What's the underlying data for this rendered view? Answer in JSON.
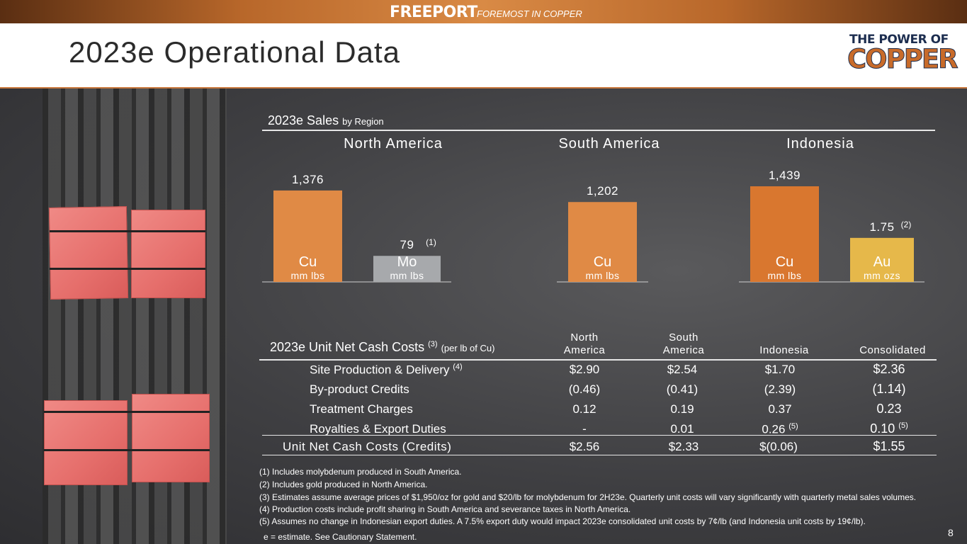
{
  "brand": {
    "name": "FREEPORT",
    "tagline": "FOREMOST IN COPPER"
  },
  "page": {
    "title": "2023e Operational Data",
    "number": "8"
  },
  "logo": {
    "line1": "THE POWER OF",
    "line2": "COPPER"
  },
  "sales": {
    "title": "2023e Sales",
    "subtitle": "by Region",
    "regions": [
      "North America",
      "South America",
      "Indonesia"
    ]
  },
  "chart_data": {
    "type": "bar",
    "title": "2023e Sales by Region",
    "groups": [
      "North America",
      "South America",
      "Indonesia"
    ],
    "bars": [
      {
        "group": "North America",
        "metal": "Cu",
        "unit": "mm lbs",
        "value": 1376,
        "label": "1,376",
        "note": "",
        "color": "#e08a45",
        "scale_max": 1439
      },
      {
        "group": "North America",
        "metal": "Mo",
        "unit": "mm lbs",
        "value": 79,
        "label": "79",
        "note": "(1)",
        "color": "#a7a9ac",
        "scale_max": 290
      },
      {
        "group": "South America",
        "metal": "Cu",
        "unit": "mm lbs",
        "value": 1202,
        "label": "1,202",
        "note": "",
        "color": "#e08a45",
        "scale_max": 1439
      },
      {
        "group": "Indonesia",
        "metal": "Cu",
        "unit": "mm lbs",
        "value": 1439,
        "label": "1,439",
        "note": "",
        "color": "#d9772f",
        "scale_max": 1439
      },
      {
        "group": "Indonesia",
        "metal": "Au",
        "unit": "mm ozs",
        "value": 1.75,
        "label": "1.75",
        "note": "(2)",
        "color": "#e6b84a",
        "scale_max": 3.8
      }
    ]
  },
  "costs": {
    "title": "2023e Unit Net Cash Costs",
    "title_note": "(3)",
    "title_suffix": "(per lb of Cu)",
    "columns": [
      {
        "line1": "North",
        "line2": "America"
      },
      {
        "line1": "South",
        "line2": "America"
      },
      {
        "line1": "",
        "line2": "Indonesia"
      },
      {
        "line1": "",
        "line2": "Consolidated"
      }
    ],
    "rows": [
      {
        "label": "Site Production & Delivery",
        "note": "(4)",
        "values": [
          "$2.90",
          "$2.54",
          "$1.70",
          "$2.36"
        ],
        "value_notes": [
          "",
          "",
          "",
          ""
        ]
      },
      {
        "label": "By-product Credits",
        "note": "",
        "values": [
          "(0.46)",
          "(0.41)",
          "(2.39)",
          "(1.14)"
        ],
        "value_notes": [
          "",
          "",
          "",
          ""
        ]
      },
      {
        "label": "Treatment Charges",
        "note": "",
        "values": [
          "0.12",
          "0.19",
          "0.37",
          "0.23"
        ],
        "value_notes": [
          "",
          "",
          "",
          ""
        ]
      },
      {
        "label": "Royalties & Export Duties",
        "note": "",
        "values": [
          "-",
          "0.01",
          "0.26",
          "0.10"
        ],
        "value_notes": [
          "",
          "",
          "(5)",
          "(5)"
        ]
      }
    ],
    "total": {
      "label": "Unit Net Cash Costs (Credits)",
      "values": [
        "$2.56",
        "$2.33",
        "$(0.06)",
        "$1.55"
      ]
    }
  },
  "footnotes": [
    "(1) Includes molybdenum produced in South America.",
    "(2) Includes gold produced in North America.",
    "(3) Estimates assume average prices of $1,950/oz for gold and $20/lb for molybdenum for 2H23e. Quarterly unit costs will vary significantly with quarterly metal sales volumes.",
    "(4) Production costs include profit sharing in South America and severance taxes in North America.",
    "(5) Assumes no change in Indonesian export duties. A 7.5% export duty would impact 2023e consolidated unit costs by 7¢/lb (and Indonesia unit costs by 19¢/lb)."
  ],
  "estimate_note": "e = estimate. See Cautionary Statement."
}
